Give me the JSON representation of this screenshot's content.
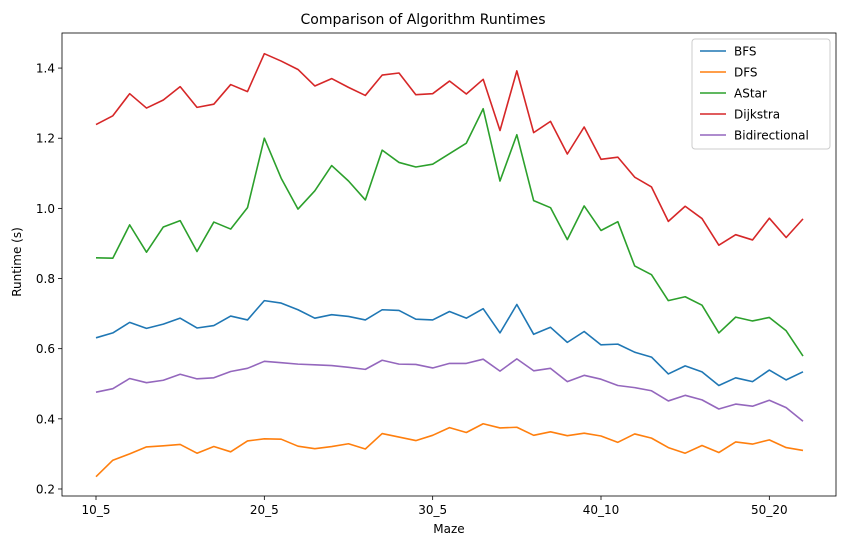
{
  "chart_data": {
    "type": "line",
    "title": "Comparison of Algorithm Runtimes",
    "xlabel": "Maze",
    "ylabel": "Runtime (s)",
    "x_tick_labels": [
      "10_5",
      "20_5",
      "30_5",
      "40_10",
      "50_20"
    ],
    "x_tick_indices": [
      0,
      10,
      20,
      30,
      40
    ],
    "ylim": [
      0.18,
      1.5
    ],
    "yticks": [
      0.2,
      0.4,
      0.6,
      0.8,
      1.0,
      1.2,
      1.4
    ],
    "ytick_labels": [
      "0.2",
      "0.4",
      "0.6",
      "0.8",
      "1.0",
      "1.2",
      "1.4"
    ],
    "grid": false,
    "legend_position": "top-right",
    "series": [
      {
        "name": "BFS",
        "color": "#1f77b4",
        "values": [
          0.631,
          0.645,
          0.675,
          0.658,
          0.67,
          0.687,
          0.659,
          0.666,
          0.693,
          0.682,
          0.737,
          0.73,
          0.711,
          0.687,
          0.697,
          0.692,
          0.682,
          0.711,
          0.709,
          0.684,
          0.682,
          0.706,
          0.687,
          0.714,
          0.645,
          0.726,
          0.641,
          0.661,
          0.618,
          0.649,
          0.611,
          0.613,
          0.59,
          0.576,
          0.528,
          0.551,
          0.534,
          0.495,
          0.517,
          0.506,
          0.539,
          0.511,
          0.534
        ]
      },
      {
        "name": "DFS",
        "color": "#ff7f0e",
        "values": [
          0.235,
          0.282,
          0.3,
          0.32,
          0.323,
          0.327,
          0.302,
          0.321,
          0.306,
          0.337,
          0.343,
          0.342,
          0.322,
          0.315,
          0.321,
          0.329,
          0.314,
          0.358,
          0.348,
          0.338,
          0.353,
          0.375,
          0.361,
          0.386,
          0.374,
          0.376,
          0.353,
          0.363,
          0.352,
          0.359,
          0.351,
          0.333,
          0.357,
          0.345,
          0.318,
          0.302,
          0.324,
          0.304,
          0.334,
          0.328,
          0.34,
          0.318,
          0.31
        ]
      },
      {
        "name": "AStar",
        "color": "#2ca02c",
        "values": [
          0.859,
          0.858,
          0.953,
          0.875,
          0.947,
          0.965,
          0.877,
          0.961,
          0.941,
          1.002,
          1.2,
          1.086,
          0.998,
          1.05,
          1.122,
          1.078,
          1.024,
          1.166,
          1.131,
          1.118,
          1.126,
          1.156,
          1.186,
          1.284,
          1.078,
          1.21,
          1.022,
          1.002,
          0.911,
          1.007,
          0.937,
          0.962,
          0.836,
          0.811,
          0.737,
          0.748,
          0.724,
          0.645,
          0.69,
          0.679,
          0.689,
          0.651,
          0.579
        ]
      },
      {
        "name": "Dijkstra",
        "color": "#d62728",
        "values": [
          1.239,
          1.264,
          1.327,
          1.286,
          1.309,
          1.347,
          1.288,
          1.297,
          1.353,
          1.333,
          1.441,
          1.42,
          1.396,
          1.349,
          1.37,
          1.345,
          1.322,
          1.38,
          1.386,
          1.324,
          1.327,
          1.363,
          1.326,
          1.368,
          1.222,
          1.392,
          1.216,
          1.248,
          1.155,
          1.232,
          1.14,
          1.146,
          1.089,
          1.061,
          0.963,
          1.006,
          0.971,
          0.895,
          0.925,
          0.91,
          0.972,
          0.917,
          0.97
        ]
      },
      {
        "name": "Bidirectional",
        "color": "#9467bd",
        "values": [
          0.476,
          0.486,
          0.515,
          0.503,
          0.51,
          0.527,
          0.514,
          0.517,
          0.535,
          0.544,
          0.564,
          0.56,
          0.556,
          0.554,
          0.552,
          0.547,
          0.541,
          0.567,
          0.556,
          0.555,
          0.545,
          0.558,
          0.558,
          0.57,
          0.536,
          0.571,
          0.537,
          0.544,
          0.506,
          0.524,
          0.513,
          0.495,
          0.489,
          0.48,
          0.451,
          0.467,
          0.454,
          0.428,
          0.442,
          0.436,
          0.453,
          0.432,
          0.393
        ]
      }
    ]
  }
}
